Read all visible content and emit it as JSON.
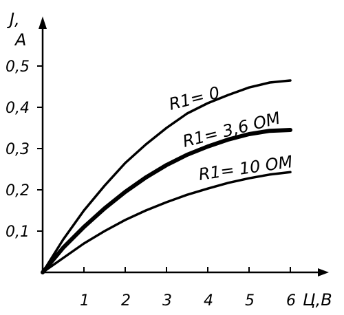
{
  "chart_data": {
    "type": "line",
    "xlabel": "Ц,В",
    "ylabel_line1": "J,",
    "ylabel_line2": "А",
    "x_ticks": [
      "1",
      "2",
      "3",
      "4",
      "5",
      "6"
    ],
    "y_ticks": [
      "0,1",
      "0,2",
      "0,3",
      "0,4",
      "0,5"
    ],
    "x_tick_values": [
      1,
      2,
      3,
      4,
      5,
      6
    ],
    "y_tick_values": [
      0.1,
      0.2,
      0.3,
      0.4,
      0.5
    ],
    "xlim": [
      0,
      6.8
    ],
    "ylim": [
      0,
      0.6
    ],
    "grid": false,
    "series": [
      {
        "name": "R1= 0",
        "x": [
          0,
          0.5,
          1,
          1.5,
          2,
          2.5,
          3,
          3.5,
          4,
          4.5,
          5,
          5.5,
          6
        ],
        "y": [
          0,
          0.08,
          0.15,
          0.21,
          0.265,
          0.31,
          0.35,
          0.385,
          0.41,
          0.43,
          0.448,
          0.46,
          0.465
        ],
        "thick": false
      },
      {
        "name": "R1= 3,6 ОМ",
        "x": [
          0,
          0.5,
          1,
          1.5,
          2,
          2.5,
          3,
          3.5,
          4,
          4.5,
          5,
          5.5,
          6
        ],
        "y": [
          0,
          0.06,
          0.11,
          0.155,
          0.195,
          0.23,
          0.26,
          0.285,
          0.305,
          0.322,
          0.335,
          0.343,
          0.345
        ],
        "thick": true
      },
      {
        "name": "R1= 10 ОМ",
        "x": [
          0,
          0.5,
          1,
          1.5,
          2,
          2.5,
          3,
          3.5,
          4,
          4.5,
          5,
          5.5,
          6
        ],
        "y": [
          0,
          0.035,
          0.07,
          0.1,
          0.127,
          0.15,
          0.17,
          0.188,
          0.203,
          0.217,
          0.228,
          0.237,
          0.243
        ],
        "thick": false
      }
    ]
  }
}
